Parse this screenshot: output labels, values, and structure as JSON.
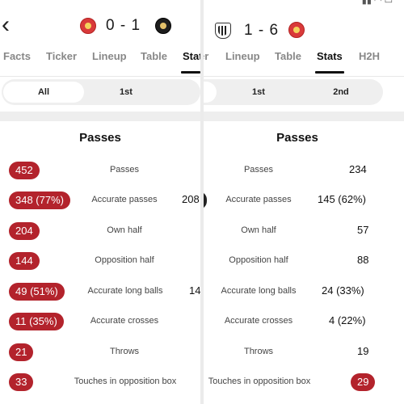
{
  "left": {
    "score": "0 - 1",
    "tabs": [
      "Facts",
      "Ticker",
      "Lineup",
      "Table",
      "Stat"
    ],
    "active_tab": "Stat",
    "periods": [
      "All",
      "1st",
      ""
    ],
    "selected_period": "All",
    "section_title": "Passes",
    "rows": [
      {
        "label": "Passes",
        "home": "452",
        "away": ""
      },
      {
        "label": "Accurate passes",
        "home": "348 (77%)",
        "away": "208"
      },
      {
        "label": "Own half",
        "home": "204",
        "away": ""
      },
      {
        "label": "Opposition half",
        "home": "144",
        "away": ""
      },
      {
        "label": "Accurate long balls",
        "home": "49 (51%)",
        "away": "14"
      },
      {
        "label": "Accurate crosses",
        "home": "11 (35%)",
        "away": ""
      },
      {
        "label": "Throws",
        "home": "21",
        "away": ""
      },
      {
        "label": "Touches in opposition box",
        "home": "33",
        "away": ""
      }
    ],
    "colors": {
      "accent": "#b3232c"
    }
  },
  "right": {
    "score": "1 - 6",
    "tabs": [
      "er",
      "Lineup",
      "Table",
      "Stats",
      "H2H"
    ],
    "active_tab": "Stats",
    "periods": [
      "",
      "1st",
      "2nd"
    ],
    "selected_period": "",
    "section_title": "Passes",
    "rows": [
      {
        "label": "Passes",
        "home": "",
        "away": "234"
      },
      {
        "label": "Accurate passes",
        "home": "",
        "away": "145 (62%)"
      },
      {
        "label": "Own half",
        "home": "",
        "away": "57"
      },
      {
        "label": "Opposition half",
        "home": "",
        "away": "88"
      },
      {
        "label": "Accurate long balls",
        "home": "",
        "away": "24 (33%)"
      },
      {
        "label": "Accurate crosses",
        "home": "",
        "away": "4 (22%)"
      },
      {
        "label": "Throws",
        "home": "",
        "away": "19"
      },
      {
        "label": "Touches in opposition box",
        "home": "",
        "away": "29"
      }
    ],
    "colors": {
      "accent": "#b3232c"
    }
  }
}
